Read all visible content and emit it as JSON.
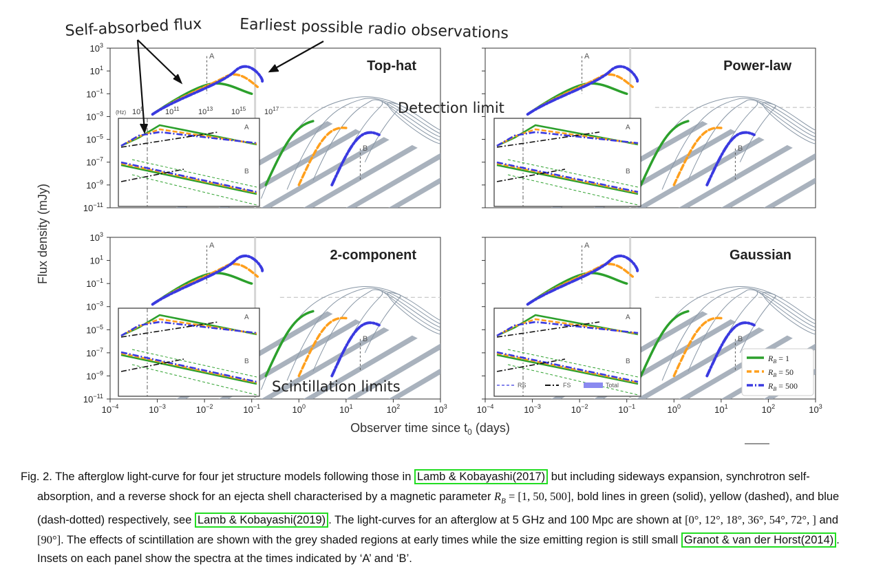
{
  "figure": {
    "ylabel": "Flux density (mJy)",
    "xlabel": "Observer time since t",
    "xlabel_sub": "0",
    "xlabel_unit": " (days)",
    "y_ticks": [
      "10",
      "10",
      "10",
      "10",
      "10",
      "10",
      "10",
      "10"
    ],
    "y_exps": [
      "3",
      "1",
      "−1",
      "−3",
      "−5",
      "−7",
      "−9",
      "−11"
    ],
    "x_ticks": [
      "10",
      "10",
      "10",
      "10",
      "10",
      "10",
      "10",
      "10"
    ],
    "x_exps": [
      "−4",
      "−3",
      "−2",
      "−1",
      "0",
      "1",
      "2",
      "3"
    ],
    "annotations": {
      "self_absorbed": "Self-absorbed flux",
      "earliest": "Earliest possible radio observations",
      "detection": "Detection limit",
      "scintillation": "Scintillation limits"
    },
    "inset_freq_label": "(Hz)",
    "inset_freq_ticks": [
      "10",
      "10",
      "10",
      "10",
      "10"
    ],
    "inset_freq_exps": [
      "9",
      "11",
      "13",
      "15",
      "17"
    ],
    "point_A": "A",
    "point_B": "B",
    "panels": [
      {
        "title": "Top-hat"
      },
      {
        "title": "Power-law"
      },
      {
        "title": "2-component"
      },
      {
        "title": "Gaussian"
      }
    ],
    "legend": {
      "items": [
        {
          "label": "R",
          "sub": "B",
          "value": " = 1",
          "color": "#2ca02c"
        },
        {
          "label": "R",
          "sub": "B",
          "value": " = 50",
          "color": "#ff9f1c"
        },
        {
          "label": "R",
          "sub": "B",
          "value": " = 500",
          "color": "#3a3ae0"
        }
      ],
      "inset_items": [
        "RS",
        "FS",
        "Total"
      ]
    },
    "colors": {
      "green": "#2ca02c",
      "orange": "#ff9f1c",
      "blue": "#3a3ae0",
      "grey": "#9aa4b2",
      "light_green": "#b8e6a0"
    }
  },
  "chart_data": [
    {
      "type": "line",
      "title": "Top-hat",
      "ylabel": "Flux density (mJy)",
      "xlabel": "Observer time since t0 (days)",
      "xlim": [
        0.0001,
        1000
      ],
      "ylim": [
        1e-11,
        1000
      ],
      "log_x": true,
      "log_y": true,
      "series": [
        {
          "name": "RB = 1"
        },
        {
          "name": "RB = 50"
        },
        {
          "name": "RB = 500"
        }
      ]
    },
    {
      "type": "line",
      "title": "Power-law",
      "xlim": [
        0.0001,
        1000
      ],
      "ylim": [
        1e-11,
        1000
      ],
      "log_x": true,
      "log_y": true
    },
    {
      "type": "line",
      "title": "2-component",
      "xlim": [
        0.0001,
        1000
      ],
      "ylim": [
        1e-11,
        1000
      ],
      "log_x": true,
      "log_y": true
    },
    {
      "type": "line",
      "title": "Gaussian",
      "xlim": [
        0.0001,
        1000
      ],
      "ylim": [
        1e-11,
        1000
      ],
      "log_x": true,
      "log_y": true
    }
  ],
  "caption": {
    "lead": "Fig. 2. The afterglow light-curve for four jet structure models following those in ",
    "ref1": "Lamb & Kobayashi(2017)",
    "t2": " but including sideways expansion, synchrotron self-absorption, and a reverse shock for an ejecta shell characterised by a magnetic parameter ",
    "rb": "R",
    "rb_sub": "B",
    "rb_val": " = [1, 50, 500]",
    "t3": ", bold lines in green (solid), yellow (dashed), and blue (dash-dotted) respectively, see ",
    "ref2": "Lamb & Kobayashi(2019)",
    "t4": ". The light-curves for an afterglow at 5 GHz and 100 Mpc are shown at ",
    "angles1": "[0°, 12°, 18°, 36°, 54°, 72°, ]",
    "t5": " and ",
    "angles2": "[90°]",
    "t6": ". The effects of scintillation are shown with the grey shaded regions at early times while the size emitting region is still small ",
    "ref3": "Granot & van der Horst(2014)",
    "t7": ". Insets on each panel show the spectra at the times indicated by ‘A’ and ‘B’."
  }
}
